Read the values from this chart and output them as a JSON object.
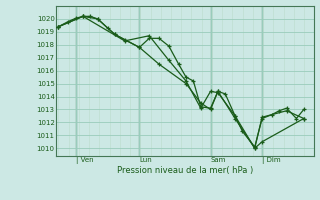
{
  "background_color": "#cce8e4",
  "grid_major_color": "#99ccbb",
  "grid_minor_color": "#bbddcc",
  "line_color": "#1a5c1a",
  "title": "Pression niveau de la mer( hPa )",
  "ylabel_values": [
    1010,
    1011,
    1012,
    1013,
    1014,
    1015,
    1016,
    1017,
    1018,
    1019,
    1020
  ],
  "ylim": [
    1009.4,
    1021.0
  ],
  "xlim": [
    -0.01,
    1.04
  ],
  "day_labels": [
    "| Ven",
    "Lun",
    "Sam",
    "| Dim"
  ],
  "day_positions": [
    0.07,
    0.33,
    0.62,
    0.83
  ],
  "series": [
    [
      0.0,
      1019.4,
      0.04,
      1019.8,
      0.07,
      1020.05,
      0.1,
      1020.2,
      0.13,
      1020.2,
      0.16,
      1020.0,
      0.2,
      1019.3,
      0.23,
      1018.8,
      0.27,
      1018.4,
      0.33,
      1017.8,
      0.37,
      1018.5,
      0.41,
      1018.5,
      0.45,
      1017.9,
      0.49,
      1016.5,
      0.52,
      1015.5,
      0.55,
      1015.2,
      0.58,
      1013.2,
      0.62,
      1013.1,
      0.65,
      1014.4,
      0.68,
      1014.2,
      0.72,
      1012.5,
      0.75,
      1011.3,
      0.8,
      1010.1,
      0.83,
      1012.3,
      0.87,
      1012.6,
      0.9,
      1012.9,
      0.93,
      1013.1,
      0.97,
      1012.3,
      1.0,
      1013.0
    ],
    [
      0.0,
      1019.4,
      0.1,
      1020.2,
      0.16,
      1020.0,
      0.23,
      1018.8,
      0.33,
      1017.8,
      0.41,
      1016.5,
      0.52,
      1015.0,
      0.58,
      1013.5,
      0.62,
      1013.0,
      0.65,
      1014.4,
      0.72,
      1012.3,
      0.8,
      1010.0,
      0.83,
      1012.4,
      0.93,
      1012.9,
      1.0,
      1012.3
    ],
    [
      0.0,
      1019.4,
      0.1,
      1020.2,
      0.27,
      1018.3,
      0.37,
      1018.7,
      0.45,
      1016.8,
      0.52,
      1015.2,
      0.58,
      1013.1,
      0.62,
      1014.4,
      0.65,
      1014.3,
      0.72,
      1012.5,
      0.8,
      1010.0,
      0.83,
      1010.5,
      1.0,
      1012.3
    ]
  ]
}
